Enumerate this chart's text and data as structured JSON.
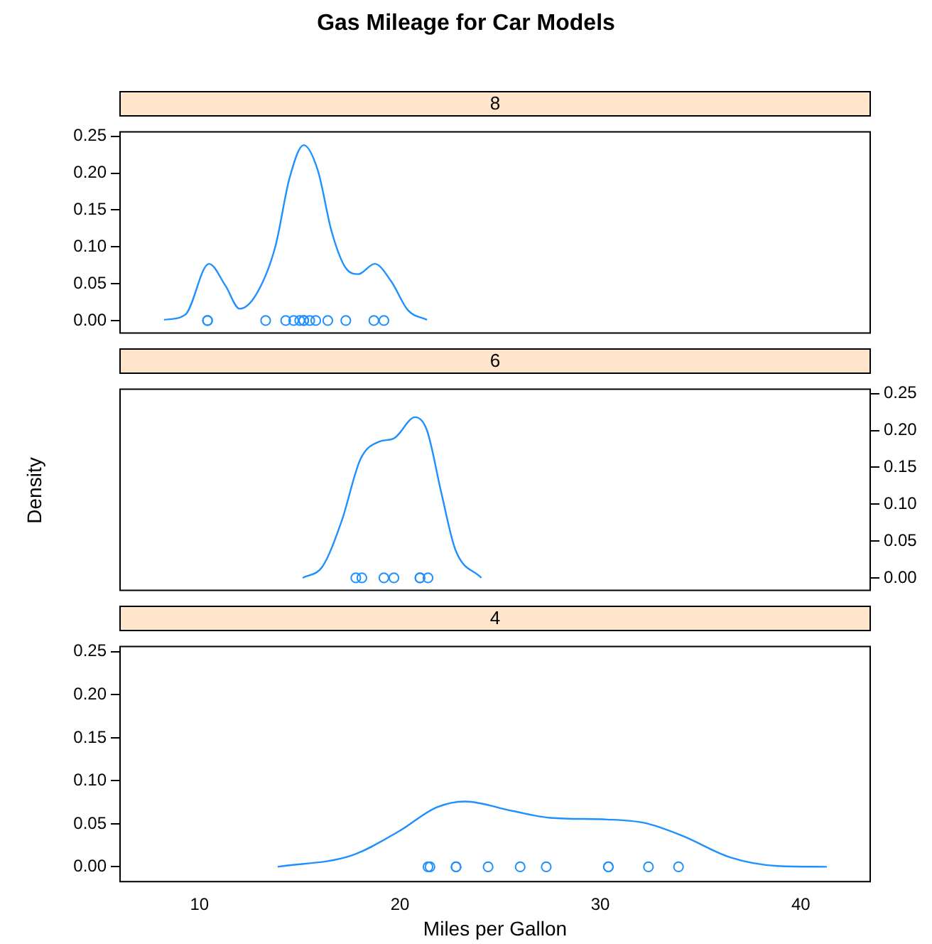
{
  "chart_data": [
    {
      "type": "line",
      "title": "Gas Mileage for Car Models",
      "subtitle": "8",
      "xlim": [
        6,
        43.5
      ],
      "ylim": [
        -0.018,
        0.257
      ],
      "xticks": [
        10,
        20,
        30,
        40
      ],
      "yticks": [
        {
          "value": 0,
          "label": "0.00"
        },
        {
          "value": 0.05,
          "label": "0.05"
        },
        {
          "value": 0.1,
          "label": "0.10"
        },
        {
          "value": 0.15,
          "label": "0.15"
        },
        {
          "value": 0.2,
          "label": "0.20"
        },
        {
          "value": 0.25,
          "label": "0.25"
        }
      ],
      "grid": false,
      "legend": false,
      "tick_labels": "y",
      "series": [
        {
          "color": "#1e90ff",
          "marker": "none",
          "x": [
            8.23,
            9.29,
            10.47,
            11.3,
            12.0,
            12.84,
            13.78,
            14.49,
            15.2,
            15.9,
            16.6,
            17.33,
            17.92,
            18.74,
            19.57,
            20.4,
            21.35
          ],
          "values": [
            0.001,
            0.008,
            0.077,
            0.047,
            0.016,
            0.036,
            0.1,
            0.193,
            0.238,
            0.204,
            0.12,
            0.07,
            0.063,
            0.077,
            0.053,
            0.014,
            0.001
          ]
        },
        {
          "type": "scatter",
          "color": "#1e90ff",
          "marker": "circle",
          "x": [
            18.7,
            14.3,
            16.4,
            17.3,
            15.2,
            10.4,
            10.4,
            14.7,
            15.5,
            15.2,
            13.3,
            19.2,
            15.8,
            15.0
          ],
          "values": [
            0,
            0,
            0,
            0,
            0,
            0,
            0,
            0,
            0,
            0,
            0,
            0,
            0,
            0
          ]
        }
      ]
    },
    {
      "type": "line",
      "subtitle": "6",
      "ylabel": "Density",
      "xlim": [
        6,
        43.5
      ],
      "ylim": [
        -0.018,
        0.257
      ],
      "xticks": [
        10,
        20,
        30,
        40
      ],
      "yticks": [
        {
          "value": 0,
          "label": "0.00"
        },
        {
          "value": 0.05,
          "label": "0.05"
        },
        {
          "value": 0.1,
          "label": "0.10"
        },
        {
          "value": 0.15,
          "label": "0.15"
        },
        {
          "value": 0.2,
          "label": "0.20"
        },
        {
          "value": 0.25,
          "label": "0.25"
        }
      ],
      "grid": false,
      "legend": false,
      "tick_labels": "y",
      "series": [
        {
          "color": "#1e90ff",
          "marker": "none",
          "x": [
            15.15,
            16.15,
            17.09,
            18.03,
            18.98,
            19.69,
            20.76,
            21.35,
            22.06,
            22.77,
            24.06
          ],
          "values": [
            0,
            0.016,
            0.077,
            0.161,
            0.185,
            0.189,
            0.218,
            0.2,
            0.116,
            0.038,
            0
          ]
        },
        {
          "type": "scatter",
          "color": "#1e90ff",
          "marker": "circle",
          "x": [
            21.0,
            21.0,
            21.4,
            18.1,
            19.2,
            17.8,
            19.7
          ],
          "values": [
            0,
            0,
            0,
            0,
            0,
            0,
            0
          ]
        }
      ]
    },
    {
      "type": "line",
      "subtitle": "4",
      "xlabel": "Miles per Gallon",
      "xlim": [
        6,
        43.5
      ],
      "ylim": [
        -0.018,
        0.257
      ],
      "xticks": [
        10,
        20,
        30,
        40
      ],
      "yticks": [
        {
          "value": 0,
          "label": "0.00"
        },
        {
          "value": 0.05,
          "label": "0.05"
        },
        {
          "value": 0.1,
          "label": "0.10"
        },
        {
          "value": 0.15,
          "label": "0.15"
        },
        {
          "value": 0.2,
          "label": "0.20"
        },
        {
          "value": 0.25,
          "label": "0.25"
        }
      ],
      "grid": false,
      "legend": false,
      "series": [
        {
          "color": "#1e90ff",
          "marker": "none",
          "x": [
            13.9,
            17.57,
            19.93,
            21.82,
            23.24,
            25.6,
            27.5,
            30.33,
            32.2,
            34.1,
            36.48,
            38.84,
            41.3
          ],
          "values": [
            0,
            0.013,
            0.041,
            0.069,
            0.076,
            0.065,
            0.057,
            0.055,
            0.051,
            0.036,
            0.011,
            0.001,
            0
          ]
        },
        {
          "type": "scatter",
          "color": "#1e90ff",
          "marker": "circle",
          "x": [
            22.8,
            24.4,
            22.8,
            32.4,
            30.4,
            33.9,
            21.5,
            27.3,
            26.0,
            30.4,
            21.4
          ],
          "values": [
            0,
            0,
            0,
            0,
            0,
            0,
            0,
            0,
            0,
            0,
            0
          ]
        }
      ]
    }
  ]
}
